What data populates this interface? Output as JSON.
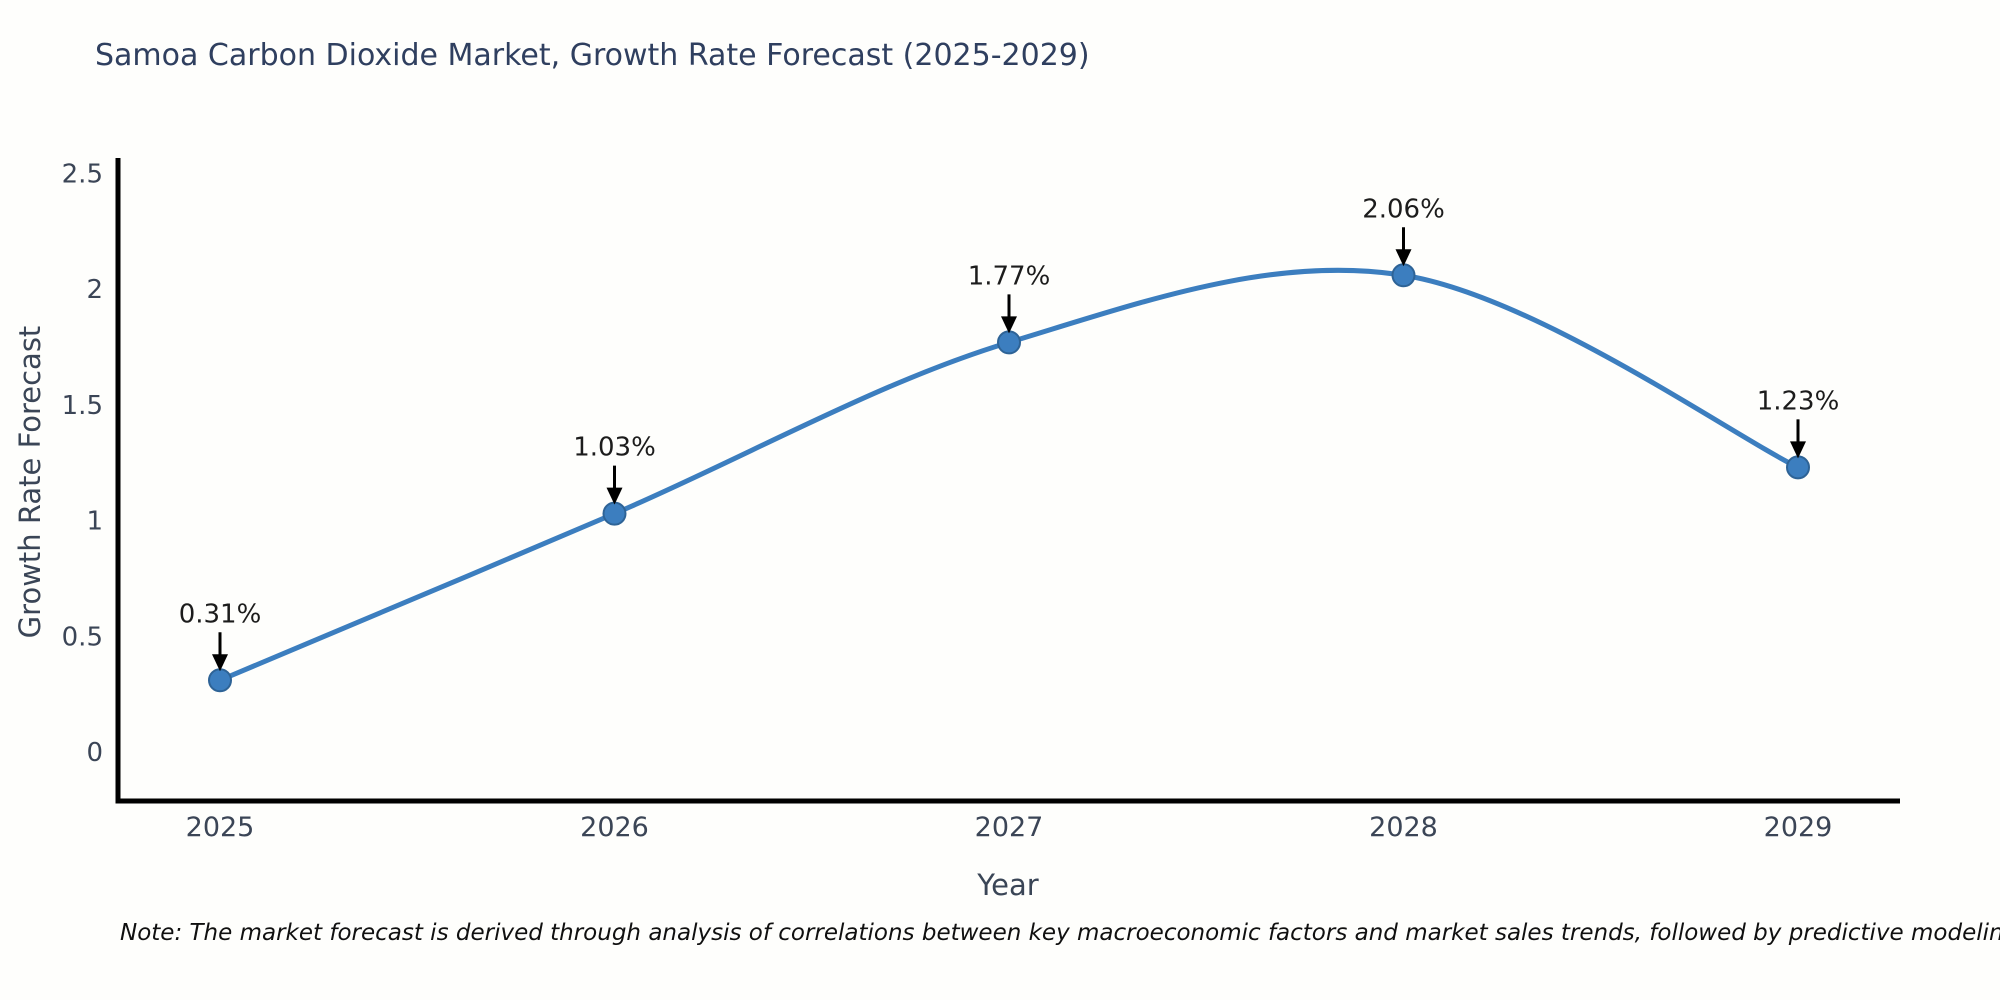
{
  "title": "Samoa Carbon Dioxide Market, Growth Rate Forecast (2025-2029)",
  "note": "Note: The market forecast is derived through analysis of correlations between key macroeconomic factors and market sales trends, followed by predictive modeling to project future sales",
  "chart_data": {
    "type": "line",
    "title": "Samoa Carbon Dioxide Market, Growth Rate Forecast (2025-2029)",
    "xlabel": "Year",
    "ylabel": "Growth Rate Forecast",
    "categories": [
      "2025",
      "2026",
      "2027",
      "2028",
      "2029"
    ],
    "values": [
      0.31,
      1.03,
      1.77,
      2.06,
      1.23
    ],
    "point_labels": [
      "0.31%",
      "1.03%",
      "1.77%",
      "2.06%",
      "1.23%"
    ],
    "yticks": [
      "0",
      "0.5",
      "1",
      "1.5",
      "2",
      "2.5"
    ],
    "ytick_values": [
      0,
      0.5,
      1,
      1.5,
      2,
      2.5
    ],
    "ylim": [
      -0.21,
      2.55
    ],
    "grid": false,
    "legend_position": "none",
    "smooth": true,
    "colors": {
      "line": "#3c7ebf",
      "marker_fill": "#3c7ebf",
      "marker_edge": "#2e6396",
      "annotation_arrow": "#000000",
      "annotation_text": "#1c1c1c",
      "tick_text": "#3b4556",
      "axis_spine": "#000000",
      "title_text": "#2f3f5f"
    }
  }
}
